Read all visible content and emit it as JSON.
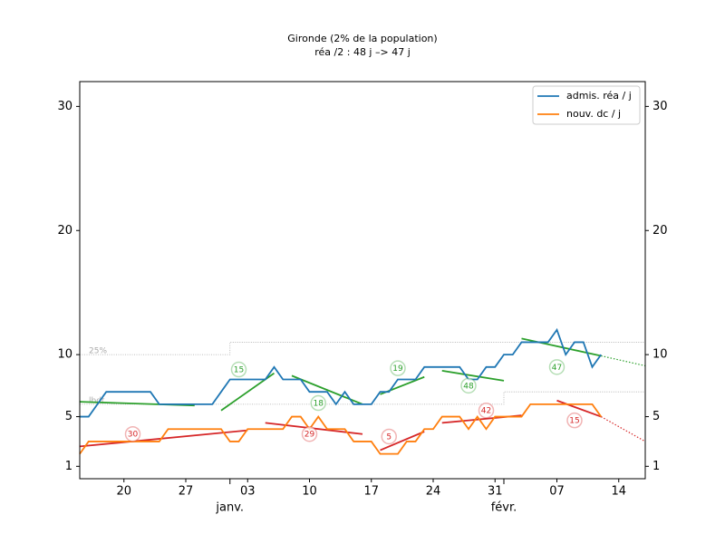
{
  "chart_data": {
    "type": "line",
    "title": "Gironde (2% de la population)",
    "subtitle": "réa /2 : 48 j –> 47 j",
    "x": [
      "12-15",
      "12-16",
      "12-17",
      "12-18",
      "12-19",
      "12-20",
      "12-21",
      "12-22",
      "12-23",
      "12-24",
      "12-25",
      "12-26",
      "12-27",
      "12-28",
      "12-29",
      "12-30",
      "12-31",
      "01-01",
      "01-02",
      "01-03",
      "01-04",
      "01-05",
      "01-06",
      "01-07",
      "01-08",
      "01-09",
      "01-10",
      "01-11",
      "01-12",
      "01-13",
      "01-14",
      "01-15",
      "01-16",
      "01-17",
      "01-18",
      "01-19",
      "01-20",
      "01-21",
      "01-22",
      "01-23",
      "01-24",
      "01-25",
      "01-26",
      "01-27",
      "01-28",
      "01-29",
      "01-30",
      "01-31",
      "02-01",
      "02-02",
      "02-03",
      "02-04",
      "02-05",
      "02-06",
      "02-07",
      "02-08",
      "02-09",
      "02-10",
      "02-11",
      "02-12"
    ],
    "series": [
      {
        "name": "admis. réa / j",
        "color": "#1f77b4",
        "values": [
          5,
          5,
          6,
          7,
          7,
          7,
          7,
          7,
          7,
          6,
          6,
          6,
          6,
          6,
          6,
          6,
          7,
          8,
          8,
          8,
          8,
          8,
          9,
          8,
          8,
          8,
          7,
          7,
          7,
          6,
          7,
          6,
          6,
          6,
          7,
          7,
          8,
          8,
          8,
          9,
          9,
          9,
          9,
          9,
          8,
          8,
          9,
          9,
          10,
          10,
          11,
          11,
          11,
          11,
          12,
          10,
          11,
          11,
          9,
          10
        ]
      },
      {
        "name": "nouv. dc / j",
        "color": "#ff7f0e",
        "values": [
          2,
          3,
          3,
          3,
          3,
          3,
          3,
          3,
          3,
          3,
          4,
          4,
          4,
          4,
          4,
          4,
          4,
          3,
          3,
          4,
          4,
          4,
          4,
          4,
          5,
          5,
          4,
          5,
          4,
          4,
          4,
          3,
          3,
          3,
          2,
          2,
          2,
          3,
          3,
          4,
          4,
          5,
          5,
          5,
          4,
          5,
          4,
          5,
          5,
          5,
          5,
          6,
          6,
          6,
          6,
          6,
          6,
          6,
          6,
          5
        ]
      }
    ],
    "trend_lines": [
      {
        "color": "#2ca02c",
        "x": [
          "12-15",
          "12-28"
        ],
        "values": [
          6.2,
          5.9
        ]
      },
      {
        "color": "#2ca02c",
        "x": [
          "12-31",
          "01-06"
        ],
        "values": [
          5.5,
          8.5
        ]
      },
      {
        "color": "#2ca02c",
        "x": [
          "01-08",
          "01-16"
        ],
        "values": [
          8.3,
          6.0
        ]
      },
      {
        "color": "#2ca02c",
        "x": [
          "01-18",
          "01-23"
        ],
        "values": [
          6.8,
          8.2
        ]
      },
      {
        "color": "#2ca02c",
        "x": [
          "01-25",
          "02-01"
        ],
        "values": [
          8.7,
          7.9
        ]
      },
      {
        "color": "#2ca02c",
        "x": [
          "02-03",
          "02-12"
        ],
        "values": [
          11.3,
          9.9
        ]
      },
      {
        "color": "#2ca02c",
        "x": [
          "02-12",
          "02-17"
        ],
        "values": [
          9.9,
          9.1
        ],
        "dotted": true
      },
      {
        "color": "#d62728",
        "x": [
          "12-15",
          "01-03"
        ],
        "values": [
          2.6,
          3.9
        ]
      },
      {
        "color": "#d62728",
        "x": [
          "01-05",
          "01-16"
        ],
        "values": [
          4.5,
          3.6
        ]
      },
      {
        "color": "#d62728",
        "x": [
          "01-18",
          "01-23"
        ],
        "values": [
          2.3,
          3.8
        ]
      },
      {
        "color": "#d62728",
        "x": [
          "01-25",
          "02-03"
        ],
        "values": [
          4.5,
          5.1
        ]
      },
      {
        "color": "#d62728",
        "x": [
          "02-07",
          "02-12"
        ],
        "values": [
          6.3,
          5.0
        ]
      },
      {
        "color": "#d62728",
        "x": [
          "02-12",
          "02-17"
        ],
        "values": [
          5.0,
          3.0
        ],
        "dotted": true
      }
    ],
    "annotations": [
      {
        "label": "15",
        "x": "01-02",
        "y": 8.8,
        "color": "#2ca02c"
      },
      {
        "label": "18",
        "x": "01-11",
        "y": 6.1,
        "color": "#2ca02c"
      },
      {
        "label": "19",
        "x": "01-20",
        "y": 8.9,
        "color": "#2ca02c"
      },
      {
        "label": "48",
        "x": "01-28",
        "y": 7.5,
        "color": "#2ca02c"
      },
      {
        "label": "47",
        "x": "02-07",
        "y": 9.0,
        "color": "#2ca02c"
      },
      {
        "label": "30",
        "x": "12-21",
        "y": 3.6,
        "color": "#d62728"
      },
      {
        "label": "29",
        "x": "01-10",
        "y": 3.6,
        "color": "#d62728"
      },
      {
        "label": "5",
        "x": "01-19",
        "y": 3.4,
        "color": "#d62728"
      },
      {
        "label": "42",
        "x": "01-30",
        "y": 5.5,
        "color": "#d62728"
      },
      {
        "label": "15",
        "x": "02-09",
        "y": 4.7,
        "color": "#d62728"
      }
    ],
    "reference_lines": [
      {
        "label": "25%",
        "x": [
          "12-15",
          "01-01",
          "01-01",
          "02-17"
        ],
        "values": [
          10,
          10,
          11,
          11
        ]
      },
      {
        "label": "lbdt",
        "x": [
          "12-15",
          "02-01",
          "02-01",
          "02-17"
        ],
        "values": [
          6,
          6,
          7,
          7
        ]
      }
    ],
    "xlim": [
      "12-15",
      "02-17"
    ],
    "xticks": [
      {
        "value": "12-20",
        "label": "20"
      },
      {
        "value": "12-27",
        "label": "27"
      },
      {
        "value": "01-03",
        "label": "03"
      },
      {
        "value": "01-10",
        "label": "10"
      },
      {
        "value": "01-17",
        "label": "17"
      },
      {
        "value": "01-24",
        "label": "24"
      },
      {
        "value": "01-31",
        "label": "31"
      },
      {
        "value": "02-07",
        "label": "07"
      },
      {
        "value": "02-14",
        "label": "14"
      }
    ],
    "x_groups": [
      {
        "label": "janv.",
        "x": "01-01"
      },
      {
        "label": "févr.",
        "x": "02-01"
      }
    ],
    "ylim": [
      0,
      32
    ],
    "yticks": [
      1,
      5,
      10,
      20,
      30
    ],
    "y2lim": [
      0,
      32
    ],
    "y2ticks": [
      1,
      5,
      10,
      20,
      30
    ],
    "legend": "upper right"
  }
}
